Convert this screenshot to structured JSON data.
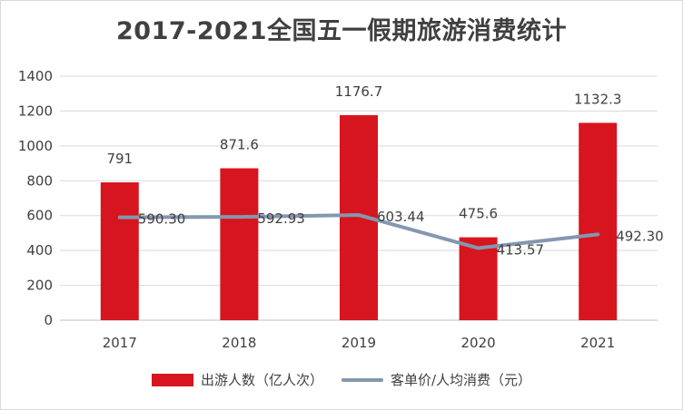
{
  "chart_data": {
    "type": "bar",
    "title": "2017-2021全国五一假期旅游消费统计",
    "categories": [
      "2017",
      "2018",
      "2019",
      "2020",
      "2021"
    ],
    "series": [
      {
        "name": "出游人数（亿人次）",
        "kind": "bar",
        "values": [
          791,
          871.6,
          1176.7,
          475.6,
          1132.3
        ],
        "labels": [
          "791",
          "871.6",
          "1176.7",
          "475.6",
          "1132.3"
        ],
        "color": "#d7151e"
      },
      {
        "name": "客单价/人均消费（元）",
        "kind": "line",
        "values": [
          590.3,
          592.93,
          603.44,
          413.57,
          492.3
        ],
        "labels": [
          "590.30",
          "592.93",
          "603.44",
          "413.57",
          "492.30"
        ],
        "color": "#8497b0"
      }
    ],
    "ylim": [
      0,
      1400
    ],
    "yticks": [
      "0",
      "200",
      "400",
      "600",
      "800",
      "1000",
      "1200",
      "1400"
    ],
    "grid": true,
    "legend_position": "bottom"
  }
}
